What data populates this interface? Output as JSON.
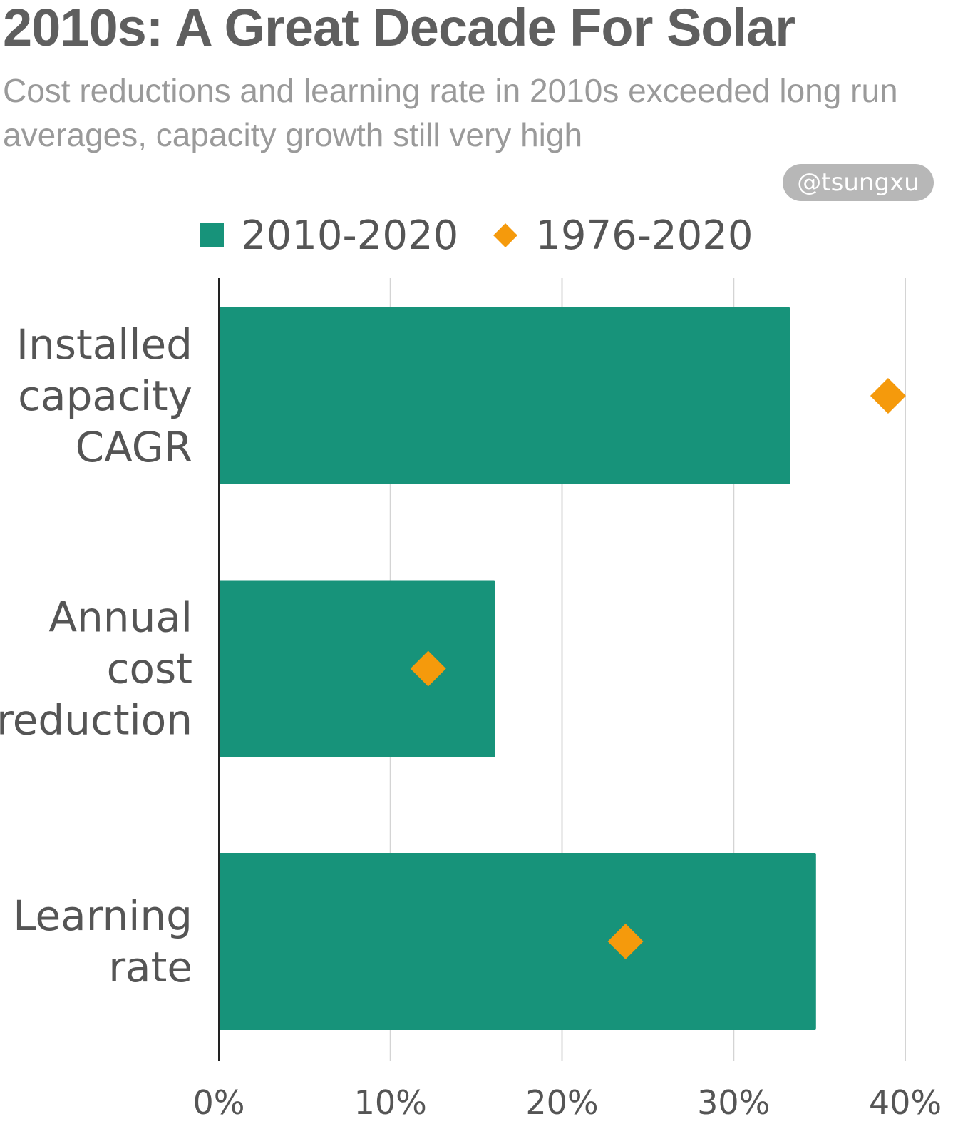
{
  "title": "2010s: A Great Decade For Solar",
  "subtitle": "Cost reductions and learning rate in 2010s exceeded long run averages, capacity growth still very high",
  "watermark": "@tsungxu",
  "chart_data": {
    "type": "bar",
    "orientation": "horizontal",
    "title": "2010s: A Great Decade For Solar",
    "subtitle": "Cost reductions and learning rate in 2010s exceeded long run averages, capacity growth still very high",
    "categories": [
      [
        "Installed",
        "capacity",
        "CAGR"
      ],
      [
        "Annual",
        "cost",
        "reduction"
      ],
      [
        "Learning",
        "rate"
      ]
    ],
    "series": [
      {
        "name": "2010-2020",
        "type": "bar",
        "color": "#17937a",
        "values": [
          33.3,
          16.1,
          34.8
        ]
      },
      {
        "name": "1976-2020",
        "type": "marker-diamond",
        "color": "#f59a0c",
        "values": [
          39.0,
          12.2,
          23.7
        ]
      }
    ],
    "xlim": [
      0,
      40
    ],
    "xticks": [
      "0%",
      "10%",
      "20%",
      "30%",
      "40%"
    ],
    "grid": true,
    "legend": "top"
  }
}
